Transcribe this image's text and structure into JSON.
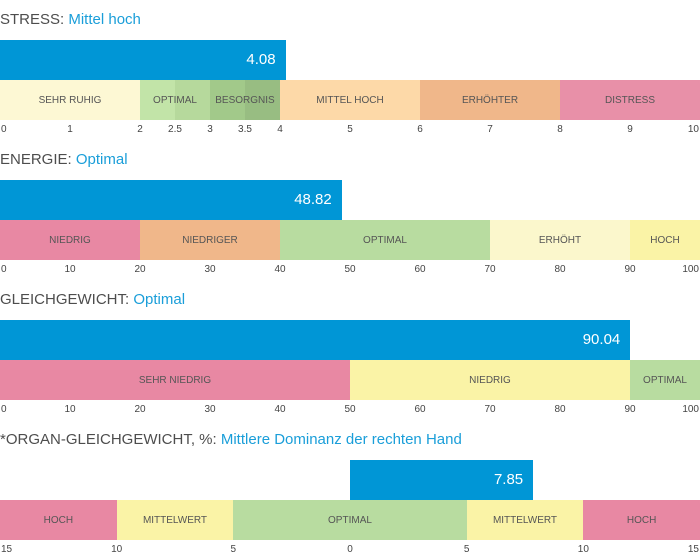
{
  "panels": [
    {
      "id": "stress",
      "label": "STRESS:",
      "value_text": "Mittel hoch",
      "bar_text": "4.08",
      "scale": {
        "kind": "linear",
        "min": 0,
        "max": 10
      },
      "value": 4.08,
      "segments": [
        {
          "label": "SEHR RUHIG",
          "from": 0,
          "to": 2,
          "color": "#fdf8d4"
        },
        {
          "label": "OPTIMAL",
          "from": 2,
          "to": 3,
          "color": "#c2e4a8",
          "split": 2.5,
          "split_color": "#b6d99c"
        },
        {
          "label": "BESORGNIS",
          "from": 3,
          "to": 4,
          "color": "#a2c98a",
          "split": 3.5,
          "split_color": "#98bd82"
        },
        {
          "label": "MITTEL HOCH",
          "from": 4,
          "to": 6,
          "color": "#fdd9a8"
        },
        {
          "label": "ERHÖHTER",
          "from": 6,
          "to": 8,
          "color": "#f0b78a"
        },
        {
          "label": "DISTRESS",
          "from": 8,
          "to": 10,
          "color": "#e890a8"
        }
      ],
      "ticks": [
        {
          "v": 0,
          "label": "0"
        },
        {
          "v": 1,
          "label": "1"
        },
        {
          "v": 2,
          "label": "2"
        },
        {
          "v": 2.5,
          "label": "2.5"
        },
        {
          "v": 3,
          "label": "3"
        },
        {
          "v": 3.5,
          "label": "3.5"
        },
        {
          "v": 4,
          "label": "4"
        },
        {
          "v": 5,
          "label": "5"
        },
        {
          "v": 6,
          "label": "6"
        },
        {
          "v": 7,
          "label": "7"
        },
        {
          "v": 8,
          "label": "8"
        },
        {
          "v": 9,
          "label": "9"
        },
        {
          "v": 10,
          "label": "10"
        }
      ]
    },
    {
      "id": "energie",
      "label": "ENERGIE:",
      "value_text": "Optimal",
      "bar_text": "48.82",
      "scale": {
        "kind": "linear",
        "min": 0,
        "max": 100
      },
      "value": 48.82,
      "segments": [
        {
          "label": "NIEDRIG",
          "from": 0,
          "to": 20,
          "color": "#e888a3"
        },
        {
          "label": "NIEDRIGER",
          "from": 20,
          "to": 40,
          "color": "#f0b78a"
        },
        {
          "label": "OPTIMAL",
          "from": 40,
          "to": 70,
          "color": "#b8dca0"
        },
        {
          "label": "ERHÖHT",
          "from": 70,
          "to": 90,
          "color": "#fbf7cc"
        },
        {
          "label": "HOCH",
          "from": 90,
          "to": 100,
          "color": "#faf3a6"
        }
      ],
      "ticks": [
        {
          "v": 0,
          "label": "0"
        },
        {
          "v": 10,
          "label": "10"
        },
        {
          "v": 20,
          "label": "20"
        },
        {
          "v": 30,
          "label": "30"
        },
        {
          "v": 40,
          "label": "40"
        },
        {
          "v": 50,
          "label": "50"
        },
        {
          "v": 60,
          "label": "60"
        },
        {
          "v": 70,
          "label": "70"
        },
        {
          "v": 80,
          "label": "80"
        },
        {
          "v": 90,
          "label": "90"
        },
        {
          "v": 100,
          "label": "100"
        }
      ]
    },
    {
      "id": "gleichgewicht",
      "label": "GLEICHGEWICHT:",
      "value_text": "Optimal",
      "bar_text": "90.04",
      "scale": {
        "kind": "linear",
        "min": 0,
        "max": 100
      },
      "value": 90.04,
      "segments": [
        {
          "label": "SEHR NIEDRIG",
          "from": 0,
          "to": 50,
          "color": "#e888a3"
        },
        {
          "label": "NIEDRIG",
          "from": 50,
          "to": 90,
          "color": "#faf3a6"
        },
        {
          "label": "OPTIMAL",
          "from": 90,
          "to": 100,
          "color": "#b8dca0"
        }
      ],
      "ticks": [
        {
          "v": 0,
          "label": "0"
        },
        {
          "v": 10,
          "label": "10"
        },
        {
          "v": 20,
          "label": "20"
        },
        {
          "v": 30,
          "label": "30"
        },
        {
          "v": 40,
          "label": "40"
        },
        {
          "v": 50,
          "label": "50"
        },
        {
          "v": 60,
          "label": "60"
        },
        {
          "v": 70,
          "label": "70"
        },
        {
          "v": 80,
          "label": "80"
        },
        {
          "v": 90,
          "label": "90"
        },
        {
          "v": 100,
          "label": "100"
        }
      ]
    },
    {
      "id": "organ",
      "label": "*ORGAN-GLEICHGEWICHT, %:",
      "value_text": "Mittlere Dominanz der rechten Hand",
      "bar_text": "7.85",
      "scale": {
        "kind": "signed",
        "min": -15,
        "max": 15,
        "origin": 0
      },
      "value": 7.85,
      "segments": [
        {
          "label": "HOCH",
          "from": -15,
          "to": -10,
          "color": "#e888a3"
        },
        {
          "label": "MITTELWERT",
          "from": -10,
          "to": -5,
          "color": "#faf3a6"
        },
        {
          "label": "OPTIMAL",
          "from": -5,
          "to": 5,
          "color": "#b8dca0"
        },
        {
          "label": "MITTELWERT",
          "from": 5,
          "to": 10,
          "color": "#faf3a6"
        },
        {
          "label": "HOCH",
          "from": 10,
          "to": 15,
          "color": "#e888a3"
        }
      ],
      "ticks": [
        {
          "v": -15,
          "label": "15"
        },
        {
          "v": -10,
          "label": "10"
        },
        {
          "v": -5,
          "label": "5"
        },
        {
          "v": 0,
          "label": "0"
        },
        {
          "v": 5,
          "label": "5"
        },
        {
          "v": 10,
          "label": "10"
        },
        {
          "v": 15,
          "label": "15"
        }
      ]
    }
  ]
}
